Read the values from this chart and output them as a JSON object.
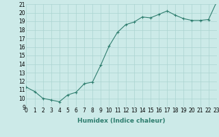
{
  "x": [
    0,
    1,
    2,
    3,
    4,
    5,
    6,
    7,
    8,
    9,
    10,
    11,
    12,
    13,
    14,
    15,
    16,
    17,
    18,
    19,
    20,
    21,
    22,
    23
  ],
  "y": [
    11.3,
    10.8,
    10.0,
    9.8,
    9.6,
    10.4,
    10.7,
    11.7,
    11.9,
    13.9,
    16.1,
    17.7,
    18.6,
    18.9,
    19.5,
    19.4,
    19.8,
    20.2,
    19.7,
    19.3,
    19.1,
    19.1,
    19.2,
    21.3
  ],
  "line_color": "#2e7d6e",
  "marker": "+",
  "marker_size": 3,
  "bg_color": "#cceae8",
  "grid_color": "#aad4d0",
  "xlabel": "Humidex (Indice chaleur)",
  "xlim": [
    0,
    23
  ],
  "ylim": [
    9,
    21
  ],
  "yticks": [
    9,
    10,
    11,
    12,
    13,
    14,
    15,
    16,
    17,
    18,
    19,
    20,
    21
  ],
  "xtick_labels": [
    "0",
    "1",
    "2",
    "3",
    "4",
    "5",
    "6",
    "7",
    "8",
    "9",
    "10",
    "11",
    "12",
    "13",
    "14",
    "15",
    "16",
    "17",
    "18",
    "19",
    "20",
    "21",
    "22",
    "23"
  ],
  "label_fontsize": 6.5,
  "tick_fontsize": 5.5
}
